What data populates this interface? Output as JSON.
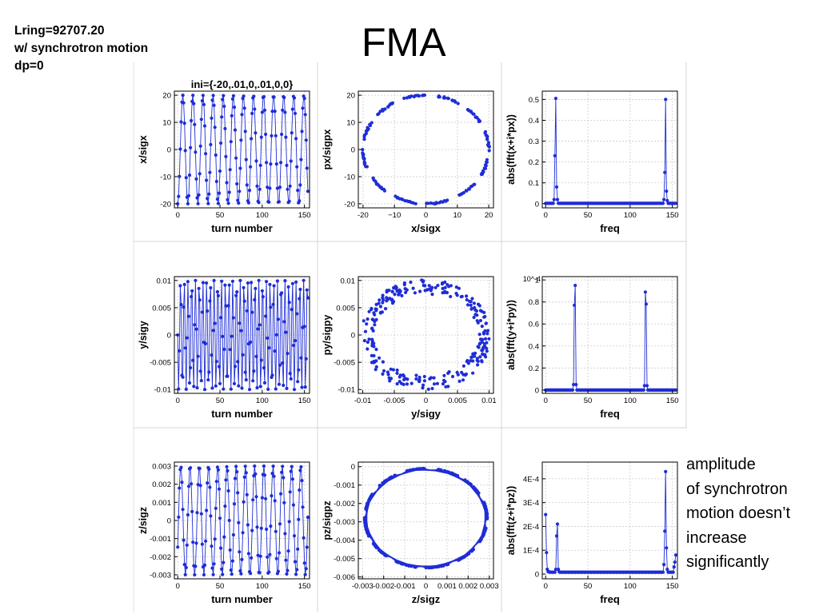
{
  "slide": {
    "title": "FMA",
    "note_lines": [
      "Lring=92707.20",
      "w/ synchrotron motion",
      "dp=0"
    ],
    "caption_lines": [
      "amplitude",
      "of synchrotron",
      "motion doesn’t",
      "increase",
      "significantly"
    ],
    "marker_color": "#1f2dd6",
    "grid_color": "#cccccc"
  },
  "chart_data": [
    {
      "id": "x-vs-turn",
      "type": "line",
      "title": "ini={-20,.01,0,.01,0,0}",
      "xlabel": "turn number",
      "ylabel": "x/sigx",
      "xlim": [
        -4,
        156
      ],
      "ylim": [
        -21.5,
        21.5
      ],
      "xticks": [
        0,
        50,
        100,
        150
      ],
      "xtick_labels": [
        "0",
        "50",
        "100",
        "150"
      ],
      "yticks": [
        -20,
        -10,
        0,
        10,
        20
      ],
      "ytick_labels": [
        "-20",
        "-10",
        "0",
        "10",
        "20"
      ],
      "series": [
        {
          "kind": "turns",
          "amplitude": 20,
          "tune": 0.0837,
          "phase": 3.14159,
          "n_turns": 155
        }
      ]
    },
    {
      "id": "px-vs-x",
      "type": "scatter",
      "title": "",
      "xlabel": "x/sigx",
      "ylabel": "px/sigpx",
      "xlim": [
        -21.5,
        21.5
      ],
      "ylim": [
        -21.5,
        21.5
      ],
      "xticks": [
        -20,
        -10,
        0,
        10,
        20
      ],
      "xtick_labels": [
        "-20",
        "−10",
        "0",
        "10",
        "20"
      ],
      "yticks": [
        -20,
        -10,
        0,
        10,
        20
      ],
      "ytick_labels": [
        "-20",
        "-10",
        "0",
        "10",
        "20"
      ],
      "series": [
        {
          "kind": "ring",
          "rx": 20,
          "ry": 20,
          "spread": 0.25,
          "n_points": 155
        }
      ]
    },
    {
      "id": "fft-x",
      "type": "line",
      "title": "",
      "xlabel": "freq",
      "ylabel": "abs(fft(x+i*px))",
      "xlim": [
        -4,
        156
      ],
      "ylim": [
        -0.02,
        0.54
      ],
      "xticks": [
        0,
        50,
        100,
        150
      ],
      "xtick_labels": [
        "0",
        "50",
        "100",
        "150"
      ],
      "yticks": [
        0,
        0.1,
        0.2,
        0.3,
        0.4,
        0.5
      ],
      "ytick_labels": [
        "0",
        "0.1",
        "0.2",
        "0.3",
        "0.4",
        "0.5"
      ],
      "series": [
        {
          "kind": "spectrum",
          "n_points": 155,
          "floor": 0.002,
          "peaks": [
            {
              "x": 12,
              "values": [
                0.02,
                0.23,
                0.505,
                0.08,
                0.02
              ]
            },
            {
              "x": 142,
              "values": [
                0.02,
                0.15,
                0.5,
                0.06,
                0.015
              ]
            }
          ]
        }
      ]
    },
    {
      "id": "y-vs-turn",
      "type": "line",
      "title": "",
      "xlabel": "turn number",
      "ylabel": "y/sigy",
      "xlim": [
        -4,
        156
      ],
      "ylim": [
        -0.0107,
        0.0107
      ],
      "xticks": [
        0,
        50,
        100,
        150
      ],
      "xtick_labels": [
        "0",
        "50",
        "100",
        "150"
      ],
      "yticks": [
        -0.01,
        -0.005,
        0,
        0.005,
        0.01
      ],
      "ytick_labels": [
        "-0.01",
        "-0.005",
        "0",
        "0.005",
        "0.01"
      ],
      "series": [
        {
          "kind": "turns",
          "amplitude": 0.01,
          "tune": 0.2265,
          "phase": 1.5708,
          "n_turns": 155
        }
      ]
    },
    {
      "id": "py-vs-y",
      "type": "scatter",
      "title": "",
      "xlabel": "y/sigy",
      "ylabel": "py/sigpy",
      "xlim": [
        -0.0107,
        0.0107
      ],
      "ylim": [
        -0.0107,
        0.0107
      ],
      "xticks": [
        -0.01,
        -0.005,
        0,
        0.005,
        0.01
      ],
      "xtick_labels": [
        "-0.01",
        "-0.005",
        "0",
        "0.005",
        "0.01"
      ],
      "yticks": [
        -0.01,
        -0.005,
        0,
        0.005,
        0.01
      ],
      "ytick_labels": [
        "-0.01",
        "-0.005",
        "0",
        "0.005",
        "0.01"
      ],
      "series": [
        {
          "kind": "band",
          "rx_out": 0.0103,
          "ry_out": 0.0102,
          "rx_in": 0.0083,
          "ry_in": 0.0075,
          "n_points": 260
        }
      ]
    },
    {
      "id": "fft-y",
      "type": "line",
      "title": "",
      "xlabel": "freq",
      "ylabel": "abs(fft(y+i*py))",
      "xlim": [
        -4,
        156
      ],
      "ylim": [
        -0.03,
        1.03
      ],
      "y_multiplier": "10^-4",
      "xticks": [
        0,
        50,
        100,
        150
      ],
      "xtick_labels": [
        "0",
        "50",
        "100",
        "150"
      ],
      "yticks": [
        0,
        0.2,
        0.4,
        0.6,
        0.8,
        1
      ],
      "ytick_labels": [
        "0",
        "0.2",
        "0.4",
        "0.6",
        "0.8",
        "1"
      ],
      "series": [
        {
          "kind": "spectrum",
          "n_points": 155,
          "floor": 0.0,
          "peaks": [
            {
              "x": 35,
              "values": [
                0.05,
                0.77,
                0.95,
                0.05,
                0.0
              ]
            },
            {
              "x": 119,
              "values": [
                0.04,
                0.89,
                0.78,
                0.04,
                0.0
              ]
            }
          ]
        }
      ]
    },
    {
      "id": "z-vs-turn",
      "type": "line",
      "title": "",
      "xlabel": "turn number",
      "ylabel": "z/sigz",
      "xlim": [
        -4,
        156
      ],
      "ylim": [
        -0.00322,
        0.00322
      ],
      "xticks": [
        0,
        50,
        100,
        150
      ],
      "xtick_labels": [
        "0",
        "50",
        "100",
        "150"
      ],
      "yticks": [
        -0.003,
        -0.002,
        -0.001,
        0,
        0.001,
        0.002,
        0.003
      ],
      "ytick_labels": [
        "-0.003",
        "-0.002",
        "-0.001",
        "0",
        "0.001",
        "0.002",
        "0.003"
      ],
      "series": [
        {
          "kind": "turns",
          "amplitude": 0.003,
          "tune": 0.0915,
          "phase": 4.2,
          "n_turns": 155
        }
      ]
    },
    {
      "id": "pz-vs-z",
      "type": "line",
      "title": "",
      "xlabel": "z/sigz",
      "ylabel": "pz/sigpz",
      "xlim": [
        -0.0032,
        0.0032
      ],
      "ylim": [
        -0.0061,
        0.00025
      ],
      "xticks": [
        -0.003,
        -0.002,
        -0.001,
        0,
        0.001,
        0.002,
        0.003
      ],
      "xtick_labels": [
        "-0.003",
        "-0.002",
        "-0.001",
        "0",
        "0.001",
        "0.002",
        "0.003"
      ],
      "yticks": [
        -0.006,
        -0.005,
        -0.004,
        -0.003,
        -0.002,
        -0.001,
        0
      ],
      "ytick_labels": [
        "-0.006",
        "-0.005",
        "-0.004",
        "-0.003",
        "-0.002",
        "-0.001",
        "0"
      ],
      "series": [
        {
          "kind": "ring",
          "rx": 0.0029,
          "ry": 0.0027,
          "cy": -0.0028,
          "spread": 0.04,
          "n_points": 155,
          "connect": true
        }
      ]
    },
    {
      "id": "fft-z",
      "type": "line",
      "title": "",
      "xlabel": "freq",
      "ylabel": "abs(fft(z+i*pz))",
      "xlim": [
        -4,
        156
      ],
      "ylim": [
        -2e-05,
        0.00047
      ],
      "xticks": [
        0,
        50,
        100,
        150
      ],
      "xtick_labels": [
        "0",
        "50",
        "100",
        "150"
      ],
      "yticks": [
        0,
        0.0001,
        0.0002,
        0.0003,
        0.0004
      ],
      "ytick_labels": [
        "0",
        "1E-4",
        "2E-4",
        "3E-4",
        "4E-4"
      ],
      "series": [
        {
          "kind": "spectrum",
          "n_points": 155,
          "floor": 8e-06,
          "peaks": [
            {
              "x": 2,
              "values": [
                0.00025,
                9e-05,
                2e-05,
                1e-05,
                1e-05
              ]
            },
            {
              "x": 14,
              "values": [
                2e-05,
                0.00016,
                0.00021,
                2e-05,
                1e-05
              ]
            },
            {
              "x": 142,
              "values": [
                4e-05,
                0.00018,
                0.00043,
                0.00011,
                2e-05
              ]
            },
            {
              "x": 154,
              "values": [
                3e-05,
                5e-05,
                8e-05,
                1e-05,
                1e-05
              ]
            }
          ]
        }
      ]
    }
  ]
}
